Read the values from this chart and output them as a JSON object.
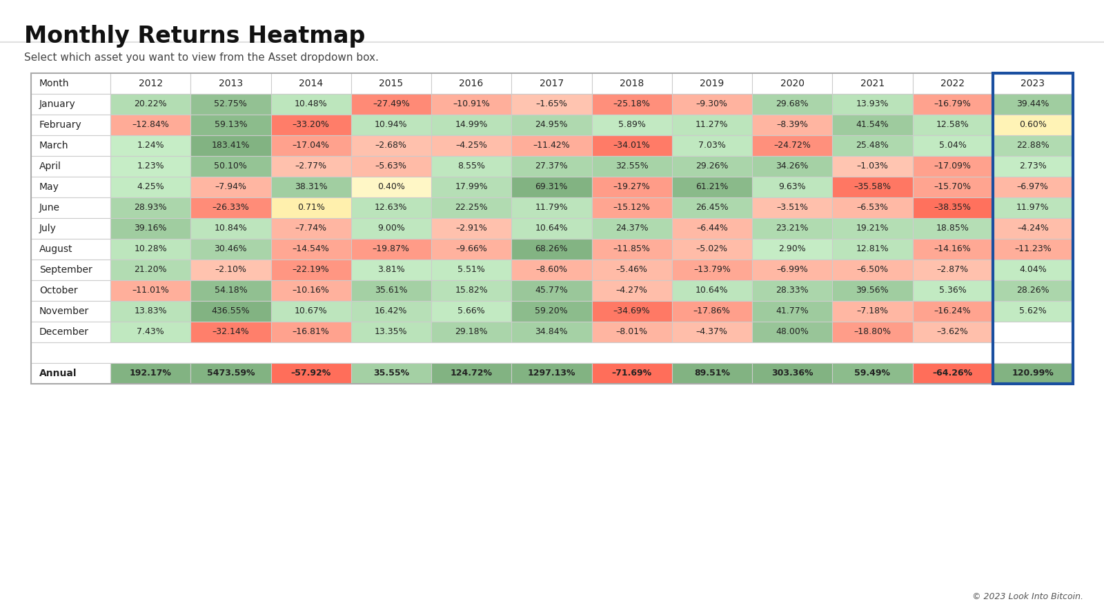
{
  "title": "Monthly Returns Heatmap",
  "subtitle": "Select which asset you want to view from the Asset dropdown box.",
  "years": [
    "2012",
    "2013",
    "2014",
    "2015",
    "2016",
    "2017",
    "2018",
    "2019",
    "2020",
    "2021",
    "2022",
    "2023"
  ],
  "months": [
    "January",
    "February",
    "March",
    "April",
    "May",
    "June",
    "July",
    "August",
    "September",
    "October",
    "November",
    "December"
  ],
  "annual_label": "Annual",
  "data": {
    "January": [
      20.22,
      52.75,
      10.48,
      -27.49,
      -10.91,
      -1.65,
      -25.18,
      -9.3,
      29.68,
      13.93,
      -16.79,
      39.44
    ],
    "February": [
      -12.84,
      59.13,
      -33.2,
      10.94,
      14.99,
      24.95,
      5.89,
      11.27,
      -8.39,
      41.54,
      12.58,
      0.6
    ],
    "March": [
      1.24,
      183.41,
      -17.04,
      -2.68,
      -4.25,
      -11.42,
      -34.01,
      7.03,
      -24.72,
      25.48,
      5.04,
      22.88
    ],
    "April": [
      1.23,
      50.1,
      -2.77,
      -5.63,
      8.55,
      27.37,
      32.55,
      29.26,
      34.26,
      -1.03,
      -17.09,
      2.73
    ],
    "May": [
      4.25,
      -7.94,
      38.31,
      0.4,
      17.99,
      69.31,
      -19.27,
      61.21,
      9.63,
      -35.58,
      -15.7,
      -6.97
    ],
    "June": [
      28.93,
      -26.33,
      0.71,
      12.63,
      22.25,
      11.79,
      -15.12,
      26.45,
      -3.51,
      -6.53,
      -38.35,
      11.97
    ],
    "July": [
      39.16,
      10.84,
      -7.74,
      9.0,
      -2.91,
      10.64,
      24.37,
      -6.44,
      23.21,
      19.21,
      18.85,
      -4.24
    ],
    "August": [
      10.28,
      30.46,
      -14.54,
      -19.87,
      -9.66,
      68.26,
      -11.85,
      -5.02,
      2.9,
      12.81,
      -14.16,
      -11.23
    ],
    "September": [
      21.2,
      -2.1,
      -22.19,
      3.81,
      5.51,
      -8.6,
      -5.46,
      -13.79,
      -6.99,
      -6.5,
      -2.87,
      4.04
    ],
    "October": [
      -11.01,
      54.18,
      -10.16,
      35.61,
      15.82,
      45.77,
      -4.27,
      10.64,
      28.33,
      39.56,
      5.36,
      28.26
    ],
    "November": [
      13.83,
      436.55,
      10.67,
      16.42,
      5.66,
      59.2,
      -34.69,
      -17.86,
      41.77,
      -7.18,
      -16.24,
      5.62
    ],
    "December": [
      7.43,
      -32.14,
      -16.81,
      13.35,
      29.18,
      34.84,
      -8.01,
      -4.37,
      48.0,
      -18.8,
      -3.62,
      null
    ]
  },
  "annual": [
    192.17,
    5473.59,
    -57.92,
    35.55,
    124.72,
    1297.13,
    -71.69,
    89.51,
    303.36,
    59.49,
    -64.26,
    120.99
  ],
  "highlight_year": "2023",
  "background_color": "#ffffff",
  "border_color": "#cccccc",
  "highlight_border": "#1a4fa0",
  "text_color": "#222222",
  "footer_text": "© 2023 Look Into Bitcoin.",
  "title_color": "#111111",
  "subtitle_color": "#444444"
}
